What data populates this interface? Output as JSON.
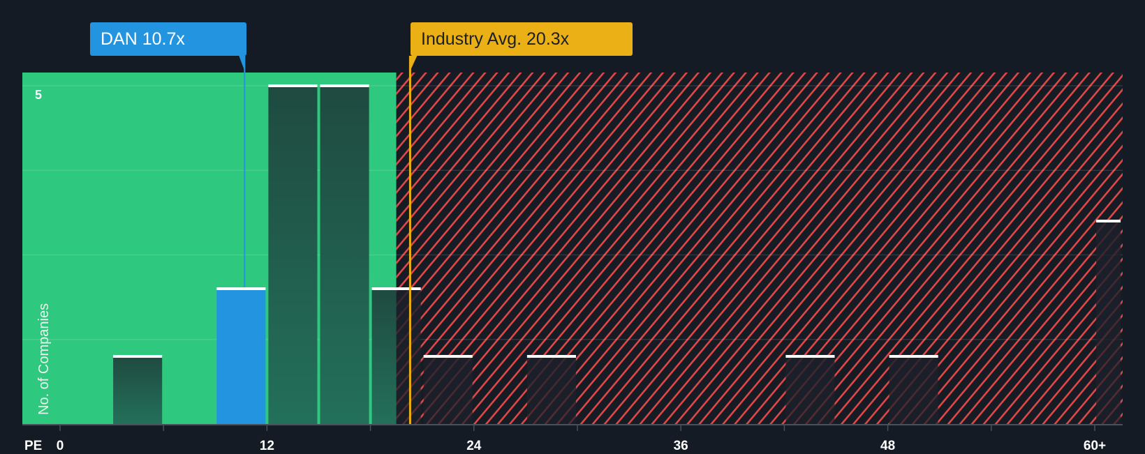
{
  "callouts": {
    "company": {
      "label": "DAN 10.7x",
      "value": 10.7,
      "color": "#2394df"
    },
    "industry": {
      "label": "Industry Avg. 20.3x",
      "value": 20.3,
      "color": "#ebb016"
    }
  },
  "axes": {
    "x_label": "PE",
    "x_ticks": [
      "0",
      "12",
      "24",
      "36",
      "48",
      "60+"
    ],
    "y_label": "No. of Companies",
    "y_ticks": [
      "5"
    ]
  },
  "colors": {
    "background": "#151b24",
    "undervalued_zone": "#2ec97f",
    "overvalued_hatch": "#e04848",
    "highlight_bar": "#2394df",
    "bar_cap": "#ffffff"
  },
  "chart_data": {
    "type": "bar",
    "title": "",
    "xlabel": "PE",
    "ylabel": "No. of Companies",
    "categories": [
      "3-6",
      "9-12",
      "12-15",
      "15-18",
      "18-21",
      "21-24",
      "27-30",
      "42-45",
      "48-51",
      "60+"
    ],
    "values": [
      1,
      2,
      5,
      5,
      2,
      1,
      1,
      1,
      1,
      3
    ],
    "bins": [
      {
        "from": 3,
        "to": 6,
        "count": 1
      },
      {
        "from": 9,
        "to": 12,
        "count": 2,
        "highlight": true
      },
      {
        "from": 12,
        "to": 15,
        "count": 5
      },
      {
        "from": 15,
        "to": 18,
        "count": 5
      },
      {
        "from": 18,
        "to": 21,
        "count": 2
      },
      {
        "from": 21,
        "to": 24,
        "count": 1
      },
      {
        "from": 27,
        "to": 30,
        "count": 1
      },
      {
        "from": 42,
        "to": 45,
        "count": 1
      },
      {
        "from": 48,
        "to": 51,
        "count": 1
      },
      {
        "from": 60,
        "to": 61.5,
        "count": 3,
        "label": "60+"
      }
    ],
    "xlim": [
      -2,
      61.5
    ],
    "ylim": [
      0,
      5.2
    ],
    "x_ticks": [
      0,
      12,
      24,
      36,
      48,
      60
    ],
    "y_ticks": [
      5
    ],
    "grid": true,
    "markers": [
      {
        "name": "DAN",
        "value": 10.7
      },
      {
        "name": "Industry Avg.",
        "value": 20.3
      }
    ],
    "shaded_regions": [
      {
        "from": -2,
        "to": 19.5,
        "meaning": "below industry (green)"
      },
      {
        "from": 19.5,
        "to": 61.5,
        "meaning": "above industry (red hatch)"
      }
    ]
  }
}
